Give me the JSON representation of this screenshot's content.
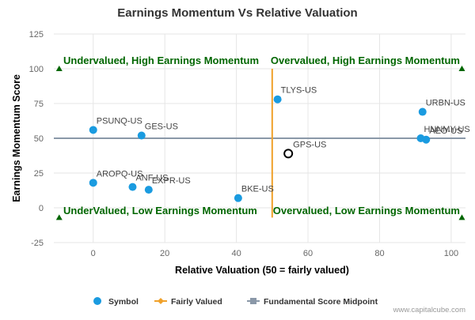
{
  "chart_data": {
    "type": "scatter",
    "title": "Earnings Momentum Vs Relative Valuation",
    "xlabel": "Relative Valuation (50 = fairly valued)",
    "ylabel": "Earnings Momentum Score",
    "xlim": [
      -11,
      104
    ],
    "ylim": [
      -25,
      125
    ],
    "xticks": [
      0,
      20,
      40,
      60,
      80,
      100
    ],
    "yticks": [
      -25,
      0,
      25,
      50,
      75,
      100,
      125
    ],
    "points": [
      {
        "label": "PSUNQ-US",
        "x": 0,
        "y": 56
      },
      {
        "label": "GES-US",
        "x": 13.5,
        "y": 52
      },
      {
        "label": "TLYS-US",
        "x": 51.5,
        "y": 78
      },
      {
        "label": "URBN-US",
        "x": 92,
        "y": 69
      },
      {
        "label": "HNNMY-US",
        "x": 91.5,
        "y": 50
      },
      {
        "label": "AEO-US",
        "x": 93,
        "y": 49
      },
      {
        "label": "AROPQ-US",
        "x": 0,
        "y": 18
      },
      {
        "label": "ANF-US",
        "x": 11,
        "y": 15
      },
      {
        "label": "EXPR-US",
        "x": 15.5,
        "y": 13
      },
      {
        "label": "BKE-US",
        "x": 40.5,
        "y": 7
      }
    ],
    "highlight": {
      "label": "GPS-US",
      "x": 54.5,
      "y": 39
    },
    "fairly_valued_x": 50,
    "midpoint_y": 50,
    "quadrant_labels": {
      "top_left": "Undervalued, High Earnings Momentum",
      "top_right": "Overvalued, High Earnings Momentum",
      "bottom_left": "UnderValued, Low Earnings Momentum",
      "bottom_right": "Overvalued, Low Earnings Momentum"
    },
    "legend": [
      {
        "name": "Symbol",
        "symbol": "circle",
        "color": "#1a9be0"
      },
      {
        "name": "Fairly Valued",
        "symbol": "diamond-line",
        "color": "#f0a12a"
      },
      {
        "name": "Fundamental Score Midpoint",
        "symbol": "square-line",
        "color": "#8a98a8"
      }
    ],
    "colors": {
      "point": "#1a9be0",
      "vertical_line": "#f0a12a",
      "midpoint_line": "#8a98a8",
      "quadrant_text": "#006600",
      "corner_marker": "#006600",
      "highlight_stroke": "#000000"
    }
  },
  "credit": "www.capitalcube.com"
}
